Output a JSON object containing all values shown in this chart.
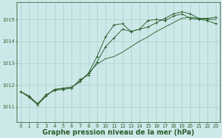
{
  "background_color": "#cce8e8",
  "grid_color": "#aacccc",
  "line_color": "#2d5f2d",
  "xlabel": "Graphe pression niveau de la mer (hPa)",
  "xlabel_fontsize": 7.0,
  "tick_fontsize": 5.0,
  "ylabel_ticks": [
    1011,
    1012,
    1013,
    1014,
    1015
  ],
  "xlim": [
    -0.5,
    23.5
  ],
  "ylim": [
    1010.3,
    1015.8
  ],
  "series1_x": [
    0,
    1,
    2,
    3,
    4,
    5,
    6,
    7,
    8,
    9,
    10,
    11,
    12,
    13,
    14,
    15,
    16,
    17,
    18,
    19,
    20,
    21,
    22,
    23
  ],
  "series1_y": [
    1011.7,
    1011.5,
    1011.15,
    1011.55,
    1011.75,
    1011.8,
    1011.85,
    1012.25,
    1012.45,
    1013.05,
    1013.75,
    1014.15,
    1014.55,
    1014.45,
    1014.55,
    1014.65,
    1014.85,
    1015.05,
    1015.25,
    1015.35,
    1015.25,
    1015.05,
    1015.05,
    1015.1
  ],
  "series2_x": [
    0,
    1,
    2,
    3,
    4,
    5,
    6,
    7,
    8,
    9,
    10,
    11,
    12,
    13,
    14,
    15,
    16,
    17,
    18,
    19,
    20,
    21,
    22,
    23
  ],
  "series2_y": [
    1011.7,
    1011.45,
    1011.1,
    1011.5,
    1011.8,
    1011.85,
    1011.9,
    1012.15,
    1012.55,
    1013.3,
    1014.2,
    1014.75,
    1014.8,
    1014.45,
    1014.55,
    1014.95,
    1015.0,
    1014.95,
    1015.15,
    1015.25,
    1015.05,
    1015.0,
    1014.95,
    1014.8
  ],
  "series3_x": [
    0,
    1,
    2,
    3,
    4,
    5,
    6,
    7,
    8,
    9,
    10,
    11,
    12,
    13,
    14,
    15,
    16,
    17,
    18,
    19,
    20,
    21,
    22,
    23
  ],
  "series3_y": [
    1011.7,
    1011.45,
    1011.1,
    1011.5,
    1011.8,
    1011.85,
    1011.9,
    1012.15,
    1012.55,
    1012.95,
    1013.2,
    1013.3,
    1013.5,
    1013.75,
    1014.0,
    1014.2,
    1014.45,
    1014.65,
    1014.85,
    1015.05,
    1015.1,
    1015.05,
    1015.0,
    1015.0
  ]
}
